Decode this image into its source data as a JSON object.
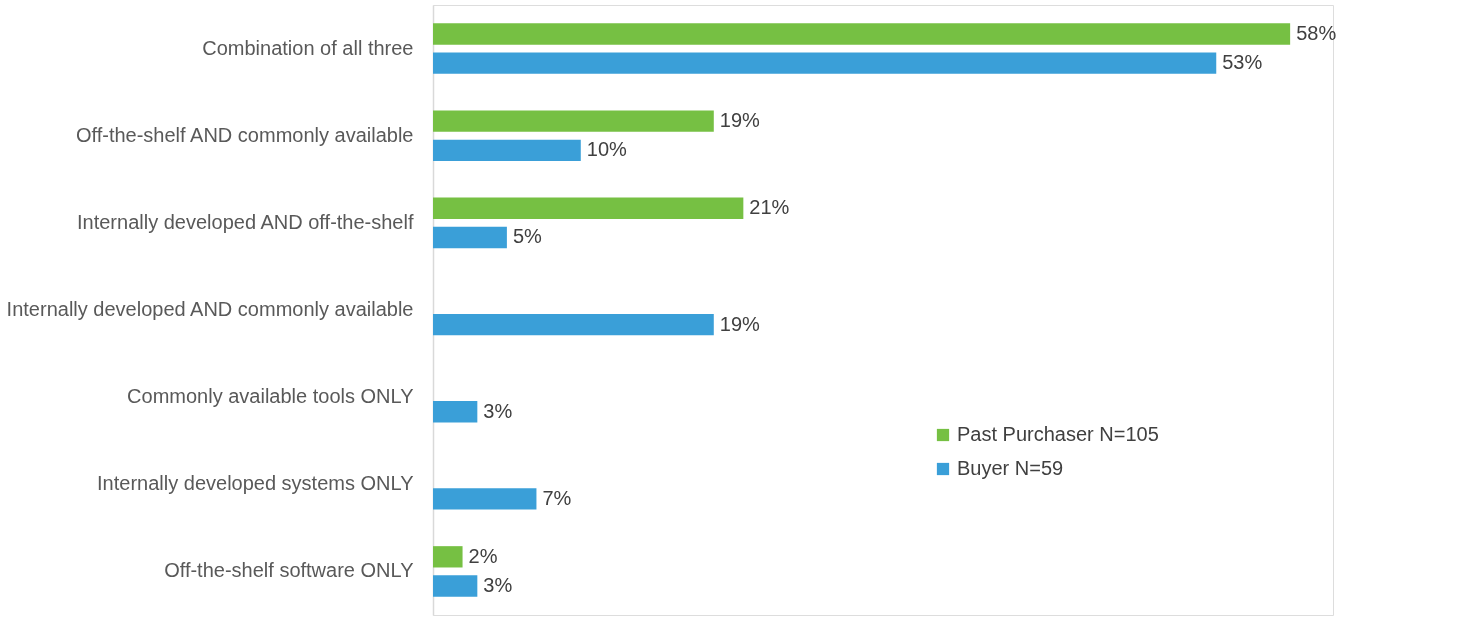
{
  "chart_data": {
    "type": "bar",
    "orientation": "horizontal",
    "legend": "right",
    "categories": [
      "Combination of all three",
      "Off-the-shelf AND commonly available",
      "Internally developed AND off-the-shelf",
      "Internally developed AND commonly available",
      "Commonly available tools ONLY",
      "Internally developed systems ONLY",
      "Off-the-shelf software ONLY"
    ],
    "series": [
      {
        "name": "Past Purchaser N=105",
        "color": "#76c043",
        "values": [
          58,
          19,
          21,
          null,
          null,
          null,
          2
        ],
        "value_labels": [
          "58%",
          "19%",
          "21%",
          null,
          null,
          null,
          "2%"
        ]
      },
      {
        "name": "Buyer N=59",
        "color": "#3a9fd8",
        "values": [
          53,
          10,
          5,
          19,
          3,
          7,
          3
        ],
        "value_labels": [
          "53%",
          "10%",
          "5%",
          "19%",
          "3%",
          "7%",
          "3%"
        ]
      }
    ]
  }
}
